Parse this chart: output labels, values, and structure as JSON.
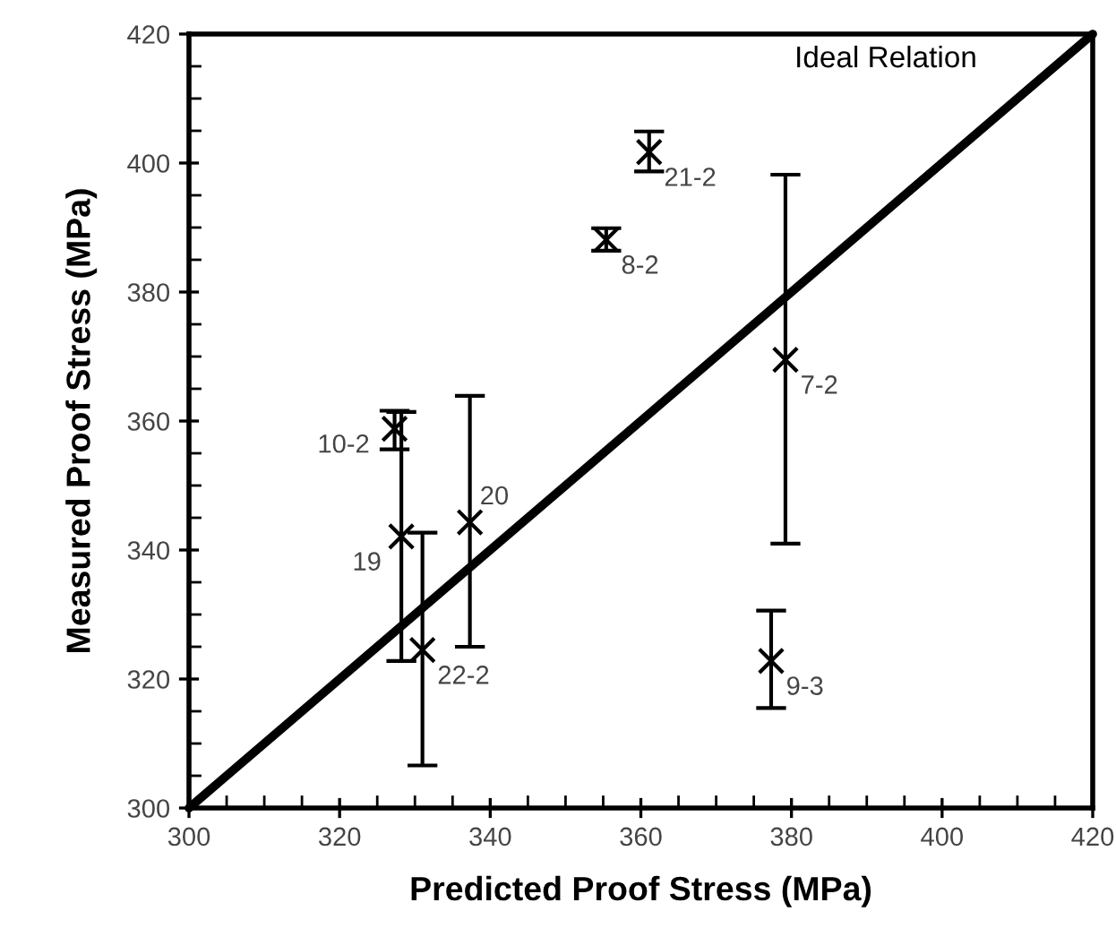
{
  "chart_data": {
    "type": "scatter",
    "xlabel": "Predicted Proof Stress (MPa)",
    "ylabel": "Measured Proof Stress (MPa)",
    "xlim": [
      300,
      420
    ],
    "ylim": [
      300,
      420
    ],
    "xticks": [
      300,
      320,
      340,
      360,
      380,
      400,
      420
    ],
    "yticks": [
      300,
      320,
      340,
      360,
      380,
      400,
      420
    ],
    "grid": false,
    "legend": false,
    "series": [
      {
        "color": "#000000",
        "marker": "cross",
        "x": [
          361.1,
          355.4,
          379.2,
          327.3,
          328.2,
          337.3,
          331.0,
          377.3
        ],
        "values": [
          401.7,
          388.1,
          369.5,
          358.8,
          342.1,
          344.3,
          324.5,
          322.8
        ],
        "errors": [
          [
            398.7,
            404.9
          ],
          [
            386.4,
            389.9
          ],
          [
            341.0,
            398.2
          ],
          [
            355.6,
            361.6
          ],
          [
            322.8,
            361.4
          ],
          [
            325.0,
            363.9
          ],
          [
            306.6,
            342.7
          ],
          [
            315.5,
            330.6
          ]
        ]
      },
      {
        "type": "line",
        "color": "#000000",
        "line_style": "solid",
        "x": [
          300,
          420
        ],
        "values": [
          300,
          420
        ]
      }
    ],
    "annotations": [
      {
        "text": "21-2",
        "x": 361.1,
        "y": 401.7
      },
      {
        "text": "8-2",
        "x": 355.4,
        "y": 388.1
      },
      {
        "text": "7-2",
        "x": 379.2,
        "y": 369.5
      },
      {
        "text": "10-2",
        "x": 327.3,
        "y": 358.8
      },
      {
        "text": "19",
        "x": 328.2,
        "y": 342.1
      },
      {
        "text": "20",
        "x": 337.3,
        "y": 344.3
      },
      {
        "text": "22-2",
        "x": 331.0,
        "y": 324.5
      },
      {
        "text": "9-3",
        "x": 377.3,
        "y": 322.8
      },
      "Ideal Relation"
    ]
  }
}
